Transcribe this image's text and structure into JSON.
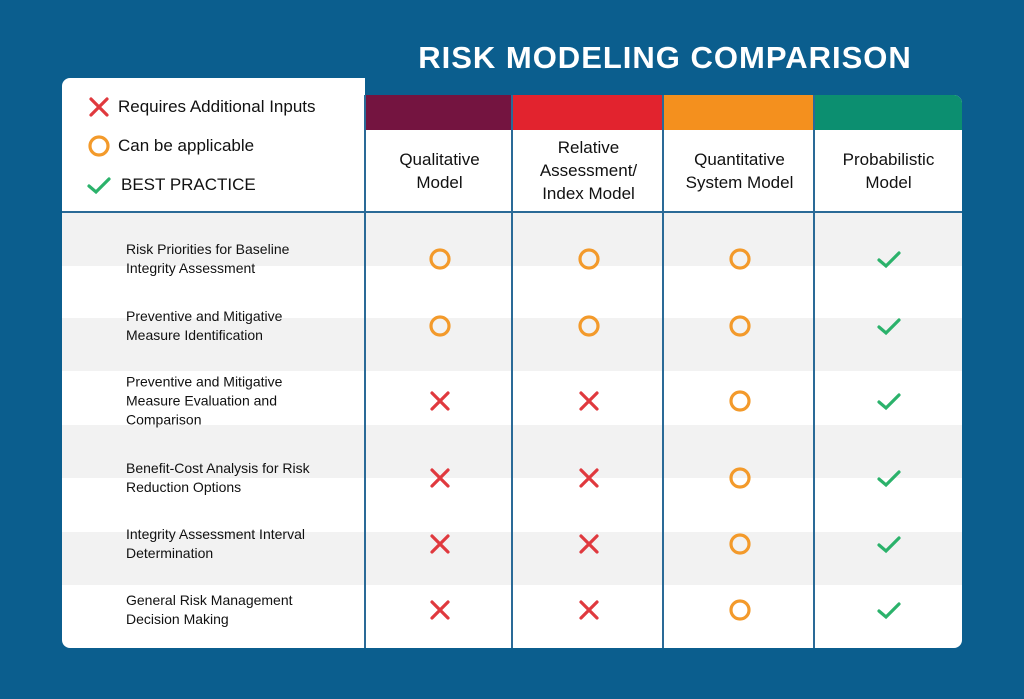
{
  "title": "RISK MODELING COMPARISON",
  "legend": [
    {
      "label": "Requires Additional Inputs",
      "color": "#e0393e"
    },
    {
      "label": "Can be applicable",
      "color": "#f39a2b"
    },
    {
      "label": "BEST PRACTICE",
      "color": "#2bb26b"
    }
  ],
  "columns": [
    {
      "label": "Qualitative Model",
      "color": "#741440"
    },
    {
      "label": "Relative Assessment/ Index Model",
      "color": "#e2232e"
    },
    {
      "label": "Quantitative System Model",
      "color": "#f4901e"
    },
    {
      "label": "Probabilistic Model",
      "color": "#0c8f70"
    }
  ],
  "rows": [
    {
      "label": "Risk Priorities for Baseline Integrity Assessment",
      "cells": [
        1,
        1,
        1,
        2
      ]
    },
    {
      "label": "Preventive and Mitigative Measure Identification",
      "cells": [
        1,
        1,
        1,
        2
      ]
    },
    {
      "label": "Preventive and Mitigative Measure Evaluation and Comparison",
      "cells": [
        0,
        0,
        1,
        2
      ]
    },
    {
      "label": "Benefit-Cost Analysis for Risk Reduction Options",
      "cells": [
        0,
        0,
        1,
        2
      ]
    },
    {
      "label": "Integrity Assessment Interval Determination",
      "cells": [
        0,
        0,
        1,
        2
      ]
    },
    {
      "label": "General Risk Management Decision Making",
      "cells": [
        0,
        0,
        1,
        2
      ]
    }
  ]
}
